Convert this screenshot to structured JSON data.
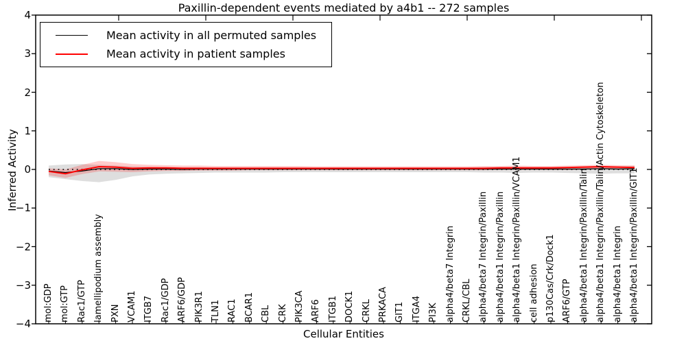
{
  "title": "Paxillin-dependent events mediated by a4b1 -- 272 samples",
  "legend": {
    "items": [
      {
        "label": "Mean activity in all permuted samples",
        "color": "#000000",
        "line_width": 1.3
      },
      {
        "label": "Mean activity in patient samples",
        "color": "#ff0000",
        "line_width": 2
      }
    ]
  },
  "chart_data": {
    "type": "line",
    "title": "Paxillin-dependent events mediated by a4b1 -- 272 samples",
    "xlabel": "Cellular Entities",
    "ylabel": "Inferred Activity",
    "ylim": [
      -4,
      4
    ],
    "yticks": [
      4,
      3,
      2,
      1,
      0,
      -1,
      -2,
      -3,
      -4
    ],
    "grid": false,
    "legend_position": "upper left",
    "categories": [
      "mol:GDP",
      "mol:GTP",
      "Rac1/GTP",
      "lamellipodium assembly",
      "PXN",
      "VCAM1",
      "ITGB7",
      "Rac1/GDP",
      "ARF6/GDP",
      "PIK3R1",
      "TLN1",
      "RAC1",
      "BCAR1",
      "CBL",
      "CRK",
      "PIK3CA",
      "ARF6",
      "ITGB1",
      "DOCK1",
      "CRKL",
      "PRKACA",
      "GIT1",
      "ITGA4",
      "PI3K",
      "alpha4/beta7 Integrin",
      "CRKL/CBL",
      "alpha4/beta7 Integrin/Paxillin",
      "alpha4/beta1 Integrin/Paxillin",
      "alpha4/beta1 Integrin/Paxillin/VCAM1",
      "cell adhesion",
      "p130Cas/Crk/Dock1",
      "ARF6/GTP",
      "alpha4/beta1 Integrin/Paxillin/Talin",
      "alpha4/beta1 Integrin/Paxillin/Talin/Actin Cytoskeleton",
      "alpha4/beta1 Integrin",
      "alpha4/beta1 Integrin/Paxillin/GIT1"
    ],
    "series": [
      {
        "name": "Mean activity in all permuted samples",
        "color": "#000000",
        "values": [
          -0.04,
          -0.08,
          -0.04,
          0.02,
          0.02,
          0.0,
          0.01,
          0.01,
          0.0,
          0.01,
          0.01,
          0.01,
          0.01,
          0.01,
          0.01,
          0.01,
          0.01,
          0.01,
          0.01,
          0.01,
          0.01,
          0.01,
          0.01,
          0.01,
          0.01,
          0.01,
          0.01,
          0.01,
          0.01,
          0.01,
          0.01,
          0.01,
          0.01,
          0.02,
          0.01,
          0.02
        ]
      },
      {
        "name": "Mean activity in patient samples",
        "color": "#ff0000",
        "values": [
          -0.05,
          -0.11,
          -0.01,
          0.07,
          0.06,
          0.03,
          0.04,
          0.04,
          0.03,
          0.03,
          0.03,
          0.03,
          0.03,
          0.03,
          0.03,
          0.03,
          0.03,
          0.03,
          0.03,
          0.03,
          0.03,
          0.03,
          0.03,
          0.03,
          0.03,
          0.03,
          0.03,
          0.04,
          0.04,
          0.04,
          0.04,
          0.05,
          0.06,
          0.07,
          0.06,
          0.05
        ]
      }
    ],
    "bands": [
      {
        "name": "permuted-samples-envelope",
        "color": "rgba(0,0,0,0.13)",
        "upper": [
          0.1,
          0.13,
          0.14,
          0.12,
          0.1,
          0.08,
          0.07,
          0.06,
          0.06,
          0.06,
          0.05,
          0.05,
          0.05,
          0.05,
          0.05,
          0.05,
          0.05,
          0.05,
          0.05,
          0.05,
          0.05,
          0.05,
          0.05,
          0.05,
          0.05,
          0.05,
          0.06,
          0.06,
          0.07,
          0.06,
          0.06,
          0.07,
          0.08,
          0.09,
          0.08,
          0.09
        ],
        "lower": [
          -0.2,
          -0.25,
          -0.3,
          -0.33,
          -0.27,
          -0.18,
          -0.13,
          -0.11,
          -0.1,
          -0.09,
          -0.08,
          -0.08,
          -0.08,
          -0.08,
          -0.07,
          -0.07,
          -0.07,
          -0.07,
          -0.07,
          -0.07,
          -0.07,
          -0.07,
          -0.07,
          -0.07,
          -0.07,
          -0.07,
          -0.08,
          -0.08,
          -0.09,
          -0.08,
          -0.08,
          -0.09,
          -0.1,
          -0.11,
          -0.1,
          -0.1
        ]
      },
      {
        "name": "patient-samples-envelope",
        "color": "rgba(255,0,0,0.20)",
        "upper": [
          0.03,
          0.0,
          0.12,
          0.22,
          0.19,
          0.14,
          0.12,
          0.11,
          0.1,
          0.1,
          0.09,
          0.09,
          0.09,
          0.09,
          0.09,
          0.09,
          0.08,
          0.08,
          0.08,
          0.08,
          0.08,
          0.08,
          0.08,
          0.08,
          0.08,
          0.08,
          0.09,
          0.09,
          0.1,
          0.09,
          0.09,
          0.1,
          0.11,
          0.12,
          0.11,
          0.11
        ],
        "lower": [
          -0.15,
          -0.22,
          -0.12,
          -0.05,
          -0.06,
          -0.07,
          -0.05,
          -0.04,
          -0.04,
          -0.03,
          -0.03,
          -0.03,
          -0.02,
          -0.02,
          -0.02,
          -0.02,
          -0.02,
          -0.02,
          -0.02,
          -0.02,
          -0.02,
          -0.02,
          -0.02,
          -0.02,
          -0.02,
          -0.02,
          -0.02,
          -0.01,
          -0.01,
          -0.01,
          -0.01,
          -0.01,
          0.0,
          0.01,
          0.0,
          0.0
        ]
      }
    ],
    "reference_line": {
      "y": 0,
      "style": "dotted",
      "color": "#000000"
    }
  }
}
